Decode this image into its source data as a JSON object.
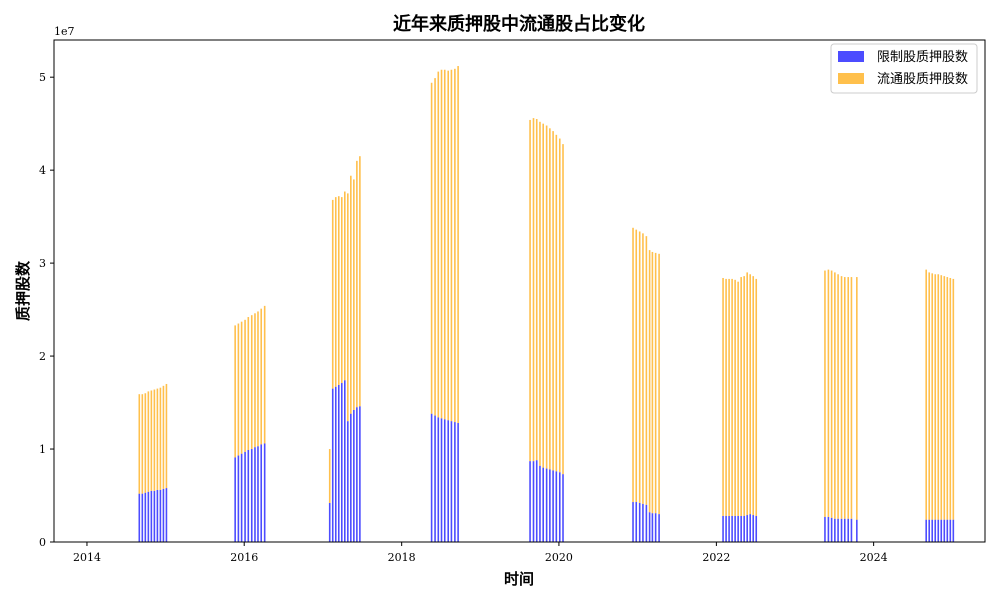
{
  "chart_data": {
    "type": "bar",
    "stacked": true,
    "title": "近年来质押股中流通股占比变化",
    "xlabel": "时间",
    "ylabel": "质押股数",
    "y_offset_label": "1e7",
    "xlim": [
      "2013-08-01",
      "2025-06-01"
    ],
    "ylim": [
      0,
      5.4
    ],
    "y_scale_factor": 10000000,
    "x_ticks": [
      "2014",
      "2016",
      "2018",
      "2020",
      "2022",
      "2024"
    ],
    "y_ticks": [
      "0",
      "1",
      "2",
      "3",
      "4",
      "5"
    ],
    "legend_position": "top-right",
    "series": [
      {
        "name": "限制股质押股数",
        "color": "#0000ff",
        "opacity": 0.7
      },
      {
        "name": "流通股质押股数",
        "color": "#ffa500",
        "opacity": 0.7
      }
    ],
    "groups": [
      {
        "x": [
          "2014-09-01",
          "2014-09-15",
          "2014-09-29",
          "2014-10-13",
          "2014-10-27",
          "2014-11-10",
          "2014-11-24",
          "2014-12-08",
          "2014-12-22",
          "2015-01-05"
        ],
        "restricted": [
          0.52,
          0.52,
          0.53,
          0.54,
          0.55,
          0.55,
          0.56,
          0.56,
          0.57,
          0.58
        ],
        "total": [
          1.59,
          1.59,
          1.6,
          1.62,
          1.63,
          1.64,
          1.65,
          1.66,
          1.68,
          1.7
        ]
      },
      {
        "x": [
          "2015-11-20",
          "2015-12-05",
          "2015-12-20",
          "2016-01-05",
          "2016-01-20",
          "2016-02-05",
          "2016-02-20",
          "2016-03-05",
          "2016-03-20",
          "2016-04-05"
        ],
        "restricted": [
          0.91,
          0.93,
          0.95,
          0.97,
          0.99,
          1.0,
          1.02,
          1.03,
          1.05,
          1.06
        ],
        "total": [
          2.33,
          2.35,
          2.37,
          2.39,
          2.42,
          2.44,
          2.46,
          2.48,
          2.51,
          2.54
        ]
      },
      {
        "x": [
          "2017-02-01",
          "2017-02-15",
          "2017-03-01",
          "2017-03-15",
          "2017-03-29",
          "2017-04-12",
          "2017-04-26",
          "2017-05-10",
          "2017-05-24",
          "2017-06-07",
          "2017-06-21"
        ],
        "restricted": [
          0.42,
          1.65,
          1.67,
          1.69,
          1.71,
          1.74,
          1.3,
          1.38,
          1.42,
          1.45,
          1.46
        ],
        "total": [
          1.0,
          3.68,
          3.71,
          3.72,
          3.71,
          3.77,
          3.75,
          3.94,
          3.9,
          4.1,
          4.15
        ]
      },
      {
        "x": [
          "2018-05-20",
          "2018-06-05",
          "2018-06-20",
          "2018-07-05",
          "2018-07-20",
          "2018-08-05",
          "2018-08-20",
          "2018-09-05",
          "2018-09-20"
        ],
        "restricted": [
          1.38,
          1.36,
          1.34,
          1.33,
          1.32,
          1.31,
          1.3,
          1.29,
          1.28
        ],
        "total": [
          4.94,
          4.99,
          5.06,
          5.08,
          5.08,
          5.07,
          5.08,
          5.09,
          5.12
        ]
      },
      {
        "x": [
          "2019-08-20",
          "2019-09-05",
          "2019-09-20",
          "2019-10-05",
          "2019-10-20",
          "2019-11-05",
          "2019-11-20",
          "2019-12-05",
          "2019-12-20",
          "2020-01-05",
          "2020-01-20"
        ],
        "restricted": [
          0.87,
          0.87,
          0.88,
          0.82,
          0.8,
          0.79,
          0.78,
          0.77,
          0.76,
          0.75,
          0.73
        ],
        "total": [
          4.54,
          4.56,
          4.55,
          4.52,
          4.5,
          4.48,
          4.45,
          4.42,
          4.38,
          4.34,
          4.28
        ]
      },
      {
        "x": [
          "2020-12-10",
          "2020-12-25",
          "2021-01-10",
          "2021-01-25",
          "2021-02-10",
          "2021-02-25",
          "2021-03-10",
          "2021-03-25",
          "2021-04-10"
        ],
        "restricted": [
          0.43,
          0.43,
          0.42,
          0.41,
          0.4,
          0.32,
          0.31,
          0.31,
          0.3
        ],
        "total": [
          3.38,
          3.36,
          3.34,
          3.32,
          3.29,
          3.14,
          3.12,
          3.11,
          3.1
        ]
      },
      {
        "x": [
          "2022-02-01",
          "2022-02-15",
          "2022-03-01",
          "2022-03-15",
          "2022-03-29",
          "2022-04-12",
          "2022-04-26",
          "2022-05-10",
          "2022-05-24",
          "2022-06-07",
          "2022-06-21",
          "2022-07-05"
        ],
        "restricted": [
          0.28,
          0.28,
          0.28,
          0.28,
          0.28,
          0.28,
          0.28,
          0.28,
          0.29,
          0.3,
          0.29,
          0.28
        ],
        "total": [
          2.84,
          2.83,
          2.83,
          2.83,
          2.82,
          2.8,
          2.85,
          2.86,
          2.9,
          2.88,
          2.86,
          2.83
        ]
      },
      {
        "x": [
          "2023-05-20",
          "2023-06-05",
          "2023-06-20",
          "2023-07-05",
          "2023-07-20",
          "2023-08-05",
          "2023-08-20",
          "2023-09-05",
          "2023-09-20",
          "2023-10-15"
        ],
        "restricted": [
          0.27,
          0.27,
          0.26,
          0.25,
          0.25,
          0.25,
          0.25,
          0.25,
          0.25,
          0.24
        ],
        "total": [
          2.92,
          2.93,
          2.92,
          2.9,
          2.88,
          2.86,
          2.85,
          2.85,
          2.85,
          2.85
        ]
      },
      {
        "x": [
          "2024-09-01",
          "2024-09-15",
          "2024-09-29",
          "2024-10-13",
          "2024-10-27",
          "2024-11-10",
          "2024-11-24",
          "2024-12-08",
          "2024-12-22",
          "2025-01-05"
        ],
        "restricted": [
          0.24,
          0.24,
          0.24,
          0.24,
          0.24,
          0.24,
          0.24,
          0.24,
          0.24,
          0.24
        ],
        "total": [
          2.93,
          2.9,
          2.89,
          2.88,
          2.88,
          2.87,
          2.86,
          2.85,
          2.84,
          2.83
        ]
      }
    ]
  }
}
